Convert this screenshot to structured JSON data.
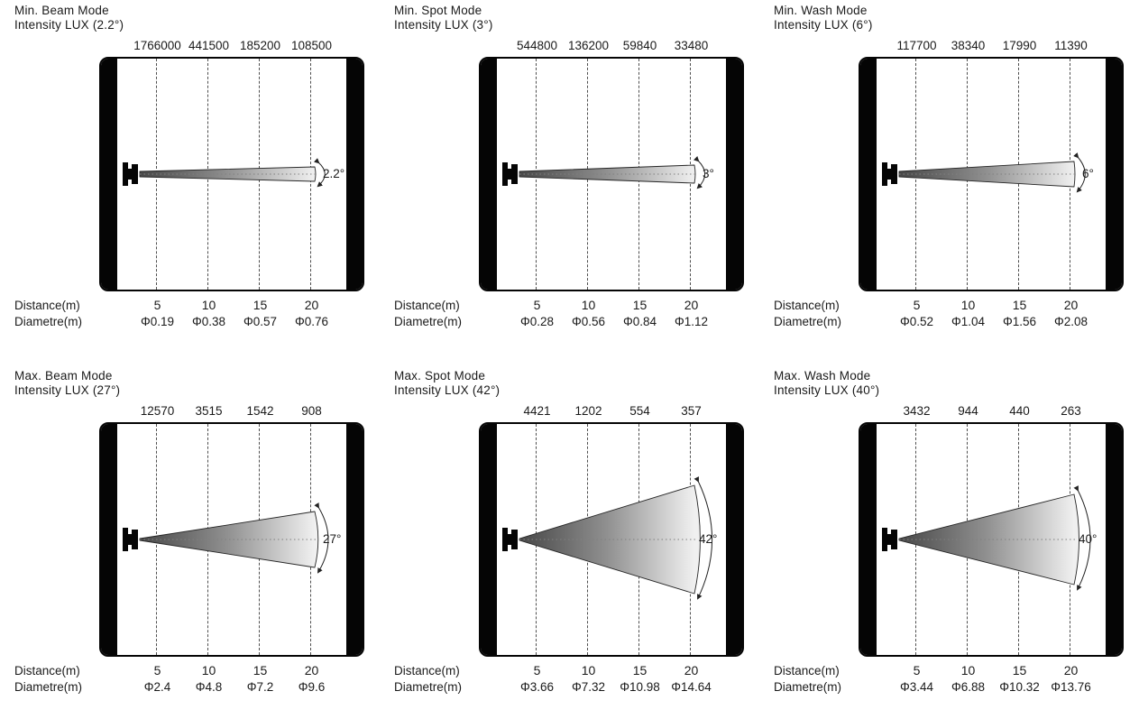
{
  "labels": {
    "distance": "Distance(m)",
    "diameter": "Diametre(m)"
  },
  "distances": [
    "5",
    "10",
    "15",
    "20"
  ],
  "colors": {
    "frame": "#050505",
    "beam_dark": "#474747",
    "beam_mid": "#909090",
    "beam_light": "#f0f0f0",
    "dashed_line": "#4f4f4f",
    "dotted_axis": "#808080",
    "text": "#1a1a1a"
  },
  "panels": [
    {
      "title": "Min. Beam Mode",
      "subtitle": "Intensity LUX (2.2°)",
      "angle_label": "2.2°",
      "intensities": [
        "1766000",
        "441500",
        "185200",
        "108500"
      ],
      "diameters": [
        "Φ0.19",
        "Φ0.38",
        "Φ0.57",
        "Φ0.76"
      ]
    },
    {
      "title": "Min. Spot Mode",
      "subtitle": "Intensity LUX (3°)",
      "angle_label": "3°",
      "intensities": [
        "544800",
        "136200",
        "59840",
        "33480"
      ],
      "diameters": [
        "Φ0.28",
        "Φ0.56",
        "Φ0.84",
        "Φ1.12"
      ]
    },
    {
      "title": "Min. Wash Mode",
      "subtitle": "Intensity LUX (6°)",
      "angle_label": "6°",
      "intensities": [
        "117700",
        "38340",
        "17990",
        "11390"
      ],
      "diameters": [
        "Φ0.52",
        "Φ1.04",
        "Φ1.56",
        "Φ2.08"
      ]
    },
    {
      "title": "Max. Beam Mode",
      "subtitle": "Intensity LUX (27°)",
      "angle_label": "27°",
      "intensities": [
        "12570",
        "3515",
        "1542",
        "908"
      ],
      "diameters": [
        "Φ2.4",
        "Φ4.8",
        "Φ7.2",
        "Φ9.6"
      ]
    },
    {
      "title": "Max. Spot Mode",
      "subtitle": "Intensity LUX (42°)",
      "angle_label": "42°",
      "intensities": [
        "4421",
        "1202",
        "554",
        "357"
      ],
      "diameters": [
        "Φ3.66",
        "Φ7.32",
        "Φ10.98",
        "Φ14.64"
      ]
    },
    {
      "title": "Max. Wash Mode",
      "subtitle": "Intensity LUX (40°)",
      "angle_label": "40°",
      "intensities": [
        "3432",
        "944",
        "440",
        "263"
      ],
      "diameters": [
        "Φ3.44",
        "Φ6.88",
        "Φ10.32",
        "Φ13.76"
      ]
    }
  ],
  "chart_data": [
    {
      "type": "area",
      "title": "Min. Beam Mode",
      "beam_angle_deg": 2.2,
      "x": [
        5,
        10,
        15,
        20
      ],
      "xlabel": "Distance(m)",
      "series": [
        {
          "name": "Intensity LUX",
          "values": [
            1766000,
            441500,
            185200,
            108500
          ]
        },
        {
          "name": "Diametre(m)",
          "values": [
            0.19,
            0.38,
            0.57,
            0.76
          ]
        }
      ]
    },
    {
      "type": "area",
      "title": "Min. Spot Mode",
      "beam_angle_deg": 3,
      "x": [
        5,
        10,
        15,
        20
      ],
      "xlabel": "Distance(m)",
      "series": [
        {
          "name": "Intensity LUX",
          "values": [
            544800,
            136200,
            59840,
            33480
          ]
        },
        {
          "name": "Diametre(m)",
          "values": [
            0.28,
            0.56,
            0.84,
            1.12
          ]
        }
      ]
    },
    {
      "type": "area",
      "title": "Min. Wash Mode",
      "beam_angle_deg": 6,
      "x": [
        5,
        10,
        15,
        20
      ],
      "xlabel": "Distance(m)",
      "series": [
        {
          "name": "Intensity LUX",
          "values": [
            117700,
            38340,
            17990,
            11390
          ]
        },
        {
          "name": "Diametre(m)",
          "values": [
            0.52,
            1.04,
            1.56,
            2.08
          ]
        }
      ]
    },
    {
      "type": "area",
      "title": "Max. Beam Mode",
      "beam_angle_deg": 27,
      "x": [
        5,
        10,
        15,
        20
      ],
      "xlabel": "Distance(m)",
      "series": [
        {
          "name": "Intensity LUX",
          "values": [
            12570,
            3515,
            1542,
            908
          ]
        },
        {
          "name": "Diametre(m)",
          "values": [
            2.4,
            4.8,
            7.2,
            9.6
          ]
        }
      ]
    },
    {
      "type": "area",
      "title": "Max. Spot Mode",
      "beam_angle_deg": 42,
      "x": [
        5,
        10,
        15,
        20
      ],
      "xlabel": "Distance(m)",
      "series": [
        {
          "name": "Intensity LUX",
          "values": [
            4421,
            1202,
            554,
            357
          ]
        },
        {
          "name": "Diametre(m)",
          "values": [
            3.66,
            7.32,
            10.98,
            14.64
          ]
        }
      ]
    },
    {
      "type": "area",
      "title": "Max. Wash Mode",
      "beam_angle_deg": 40,
      "x": [
        5,
        10,
        15,
        20
      ],
      "xlabel": "Distance(m)",
      "series": [
        {
          "name": "Intensity LUX",
          "values": [
            3432,
            944,
            440,
            263
          ]
        },
        {
          "name": "Diametre(m)",
          "values": [
            3.44,
            6.88,
            10.32,
            13.76
          ]
        }
      ]
    }
  ]
}
